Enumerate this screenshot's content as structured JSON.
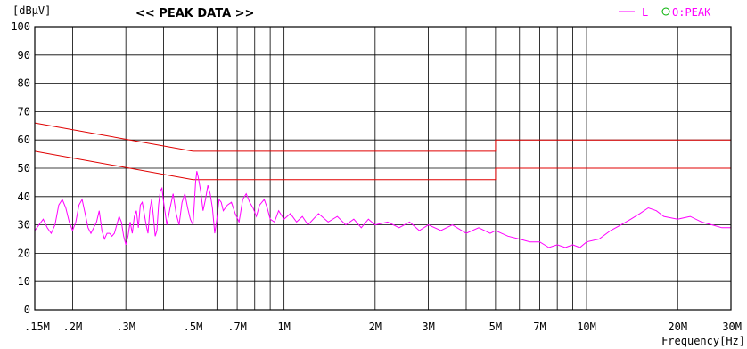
{
  "colors": {
    "limit": "#e00000",
    "trace": "#ff00ff",
    "peak_marker": "#00b000",
    "grid": "#000000",
    "background": "#ffffff"
  },
  "chart_data": {
    "type": "line",
    "title": "<< PEAK DATA >>",
    "ylabel": "[dBμV]",
    "xlabel": "Frequency[Hz]",
    "x_scale": "log",
    "xlim": [
      150000,
      30000000
    ],
    "ylim": [
      0,
      100
    ],
    "grid": true,
    "legend_position": "top-right",
    "y_ticks": [
      0,
      10,
      20,
      30,
      40,
      50,
      60,
      70,
      80,
      90,
      100
    ],
    "x_ticks": [
      {
        "value": 150000,
        "label": ".15M"
      },
      {
        "value": 200000,
        "label": ".2M"
      },
      {
        "value": 300000,
        "label": ".3M"
      },
      {
        "value": 500000,
        "label": ".5M"
      },
      {
        "value": 700000,
        "label": ".7M"
      },
      {
        "value": 1000000,
        "label": "1M"
      },
      {
        "value": 2000000,
        "label": "2M"
      },
      {
        "value": 3000000,
        "label": "3M"
      },
      {
        "value": 5000000,
        "label": "5M"
      },
      {
        "value": 7000000,
        "label": "7M"
      },
      {
        "value": 10000000,
        "label": "10M"
      },
      {
        "value": 20000000,
        "label": "20M"
      },
      {
        "value": 30000000,
        "label": "30M"
      }
    ],
    "legend": {
      "series_label": "L",
      "marker_label": "O:PEAK"
    },
    "limit_lines": [
      {
        "points": [
          [
            150000,
            66
          ],
          [
            500000,
            56
          ],
          [
            5000000,
            56
          ],
          [
            5000000,
            60
          ],
          [
            30000000,
            60
          ]
        ]
      },
      {
        "points": [
          [
            150000,
            56
          ],
          [
            500000,
            46
          ],
          [
            5000000,
            46
          ],
          [
            5000000,
            50
          ],
          [
            30000000,
            50
          ]
        ]
      }
    ],
    "series": [
      {
        "name": "L",
        "points": [
          [
            150000,
            28
          ],
          [
            155000,
            30
          ],
          [
            160000,
            32
          ],
          [
            165000,
            29
          ],
          [
            170000,
            27
          ],
          [
            175000,
            30
          ],
          [
            180000,
            37
          ],
          [
            185000,
            39
          ],
          [
            190000,
            36
          ],
          [
            195000,
            31
          ],
          [
            200000,
            28
          ],
          [
            205000,
            31
          ],
          [
            210000,
            37
          ],
          [
            215000,
            39
          ],
          [
            220000,
            34
          ],
          [
            225000,
            29
          ],
          [
            230000,
            27
          ],
          [
            240000,
            31
          ],
          [
            245000,
            35
          ],
          [
            250000,
            28
          ],
          [
            255000,
            25
          ],
          [
            260000,
            27
          ],
          [
            265000,
            27
          ],
          [
            270000,
            26
          ],
          [
            275000,
            27
          ],
          [
            280000,
            30
          ],
          [
            285000,
            33
          ],
          [
            290000,
            31
          ],
          [
            295000,
            26
          ],
          [
            300000,
            23
          ],
          [
            305000,
            26
          ],
          [
            310000,
            31
          ],
          [
            315000,
            27
          ],
          [
            320000,
            33
          ],
          [
            325000,
            35
          ],
          [
            330000,
            29
          ],
          [
            335000,
            37
          ],
          [
            340000,
            38
          ],
          [
            345000,
            34
          ],
          [
            350000,
            30
          ],
          [
            355000,
            27
          ],
          [
            360000,
            35
          ],
          [
            365000,
            39
          ],
          [
            370000,
            33
          ],
          [
            375000,
            26
          ],
          [
            380000,
            28
          ],
          [
            385000,
            37
          ],
          [
            390000,
            42
          ],
          [
            395000,
            43
          ],
          [
            400000,
            38
          ],
          [
            410000,
            30
          ],
          [
            420000,
            36
          ],
          [
            430000,
            41
          ],
          [
            440000,
            34
          ],
          [
            450000,
            30
          ],
          [
            460000,
            38
          ],
          [
            470000,
            41
          ],
          [
            480000,
            36
          ],
          [
            490000,
            32
          ],
          [
            500000,
            30
          ],
          [
            505000,
            37
          ],
          [
            510000,
            45
          ],
          [
            515000,
            49
          ],
          [
            520000,
            47
          ],
          [
            530000,
            42
          ],
          [
            540000,
            35
          ],
          [
            550000,
            39
          ],
          [
            560000,
            44
          ],
          [
            570000,
            41
          ],
          [
            580000,
            36
          ],
          [
            590000,
            27
          ],
          [
            600000,
            32
          ],
          [
            610000,
            39
          ],
          [
            620000,
            38
          ],
          [
            630000,
            35
          ],
          [
            650000,
            37
          ],
          [
            670000,
            38
          ],
          [
            690000,
            34
          ],
          [
            710000,
            31
          ],
          [
            730000,
            39
          ],
          [
            750000,
            41
          ],
          [
            770000,
            38
          ],
          [
            790000,
            36
          ],
          [
            810000,
            33
          ],
          [
            830000,
            37
          ],
          [
            860000,
            39
          ],
          [
            880000,
            36
          ],
          [
            900000,
            32
          ],
          [
            930000,
            31
          ],
          [
            960000,
            35
          ],
          [
            1000000,
            32
          ],
          [
            1050000,
            34
          ],
          [
            1100000,
            31
          ],
          [
            1150000,
            33
          ],
          [
            1200000,
            30
          ],
          [
            1300000,
            34
          ],
          [
            1400000,
            31
          ],
          [
            1500000,
            33
          ],
          [
            1600000,
            30
          ],
          [
            1700000,
            32
          ],
          [
            1800000,
            29
          ],
          [
            1900000,
            32
          ],
          [
            2000000,
            30
          ],
          [
            2200000,
            31
          ],
          [
            2400000,
            29
          ],
          [
            2600000,
            31
          ],
          [
            2800000,
            28
          ],
          [
            3000000,
            30
          ],
          [
            3300000,
            28
          ],
          [
            3600000,
            30
          ],
          [
            4000000,
            27
          ],
          [
            4400000,
            29
          ],
          [
            4800000,
            27
          ],
          [
            5000000,
            28
          ],
          [
            5500000,
            26
          ],
          [
            6000000,
            25
          ],
          [
            6500000,
            24
          ],
          [
            7000000,
            24
          ],
          [
            7500000,
            22
          ],
          [
            8000000,
            23
          ],
          [
            8500000,
            22
          ],
          [
            9000000,
            23
          ],
          [
            9500000,
            22
          ],
          [
            10000000,
            24
          ],
          [
            11000000,
            25
          ],
          [
            12000000,
            28
          ],
          [
            13000000,
            30
          ],
          [
            14000000,
            32
          ],
          [
            15000000,
            34
          ],
          [
            16000000,
            36
          ],
          [
            17000000,
            35
          ],
          [
            18000000,
            33
          ],
          [
            20000000,
            32
          ],
          [
            22000000,
            33
          ],
          [
            24000000,
            31
          ],
          [
            26000000,
            30
          ],
          [
            28000000,
            29
          ],
          [
            30000000,
            29
          ]
        ]
      }
    ]
  }
}
